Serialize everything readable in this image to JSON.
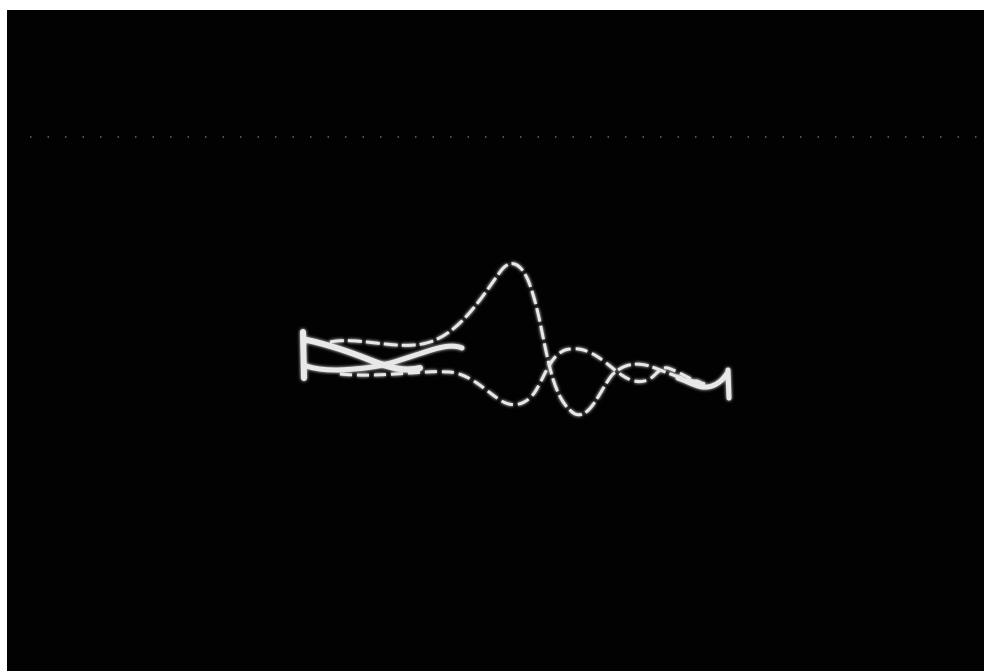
{
  "photo": {
    "background_color": "#020202",
    "frame_color": "#ffffff",
    "trace_color": "#e8e8e8",
    "glow_color": "#ffffff",
    "dotted_line_color": "#6a6a6a"
  }
}
